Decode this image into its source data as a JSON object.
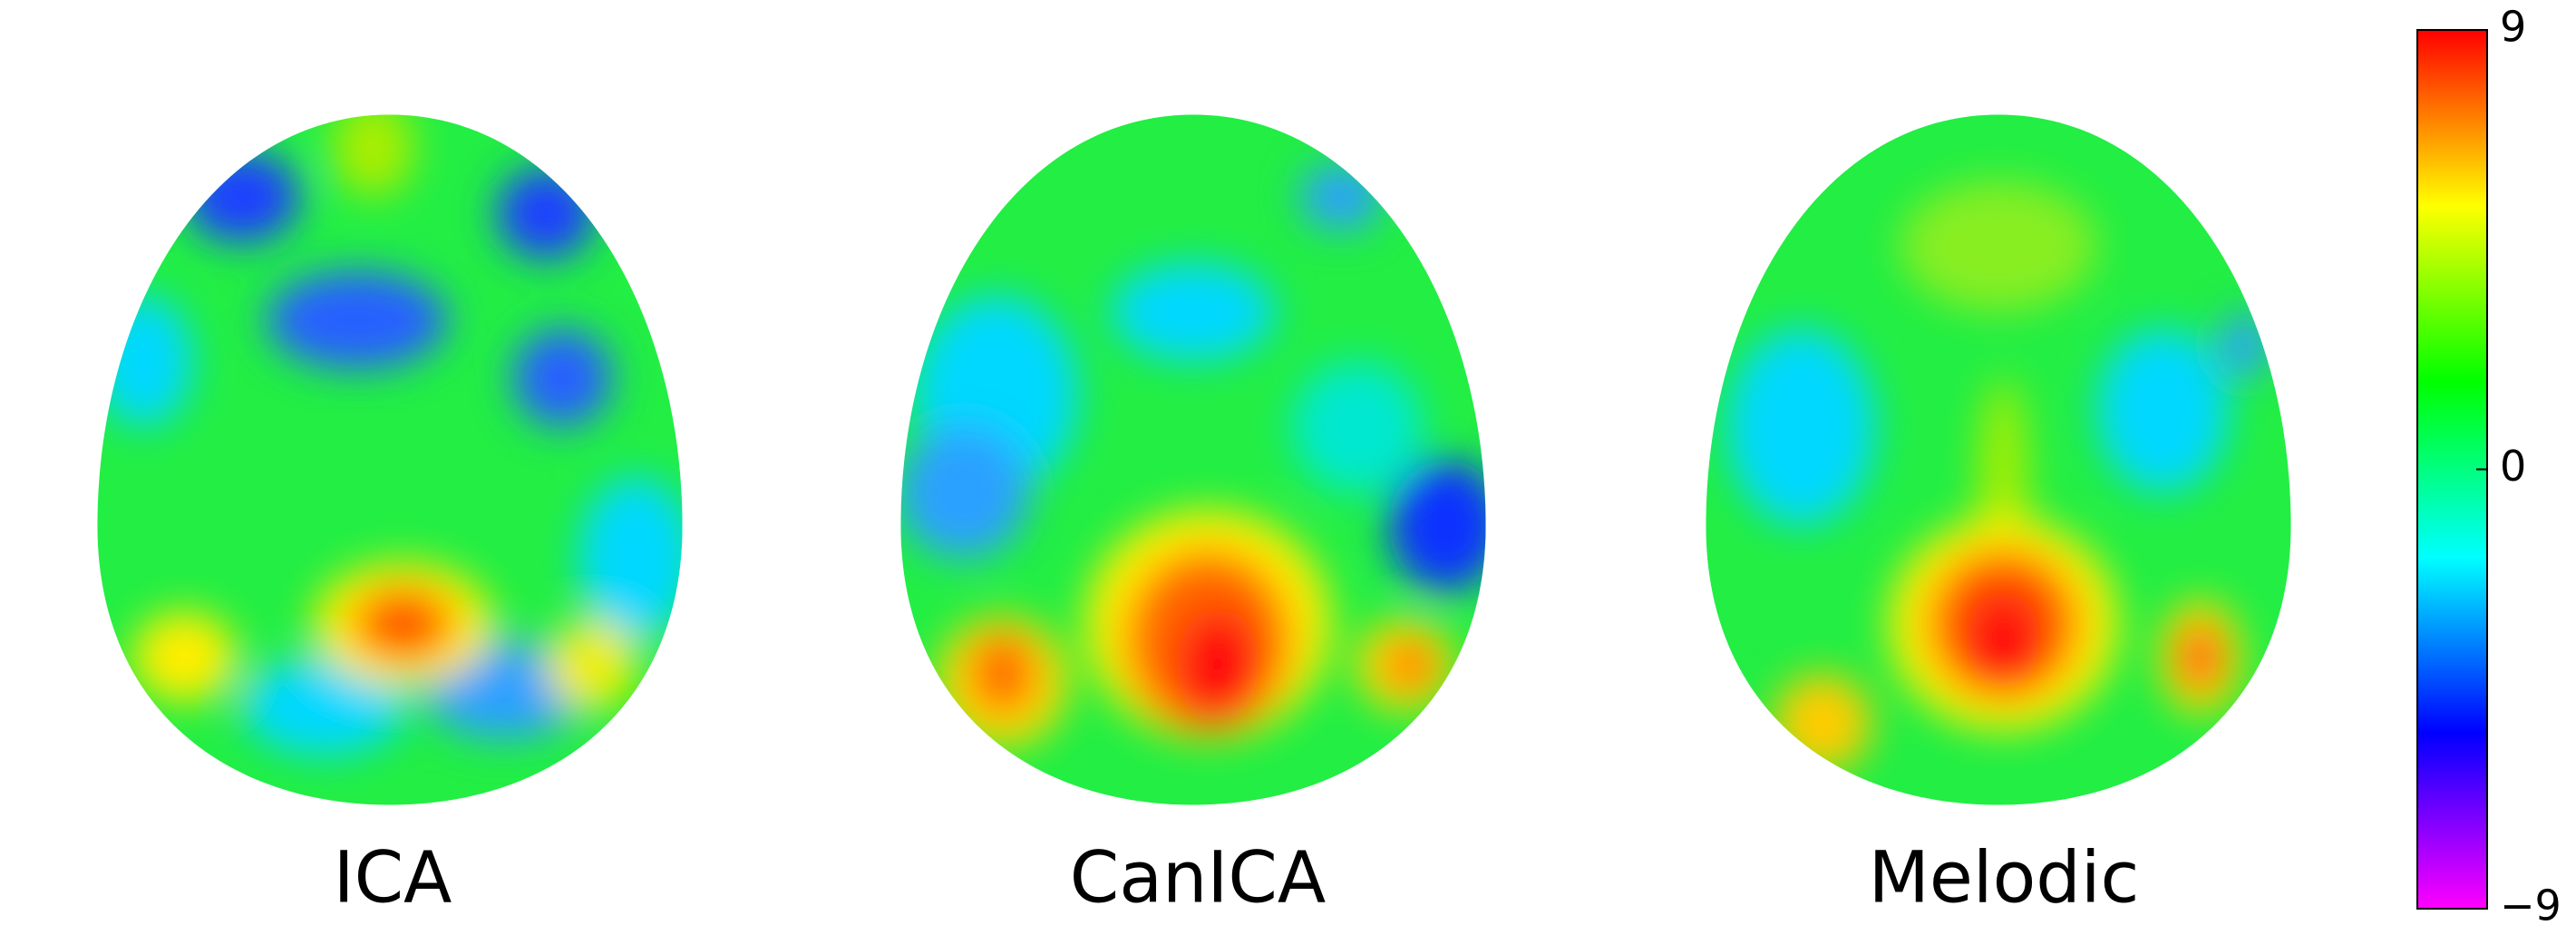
{
  "chart_data": {
    "type": "heatmap",
    "panels": [
      "ICA",
      "CanICA",
      "Melodic"
    ],
    "colorbar": {
      "ylim": [
        -9,
        9
      ],
      "yticks": [
        9,
        0,
        {
          "value": -9,
          "label": "−9"
        }
      ],
      "colormap": [
        "#ff00ff",
        "#0000ff",
        "#00ffff",
        "#00ff00",
        "#ffff00",
        "#ff0000"
      ]
    }
  }
}
